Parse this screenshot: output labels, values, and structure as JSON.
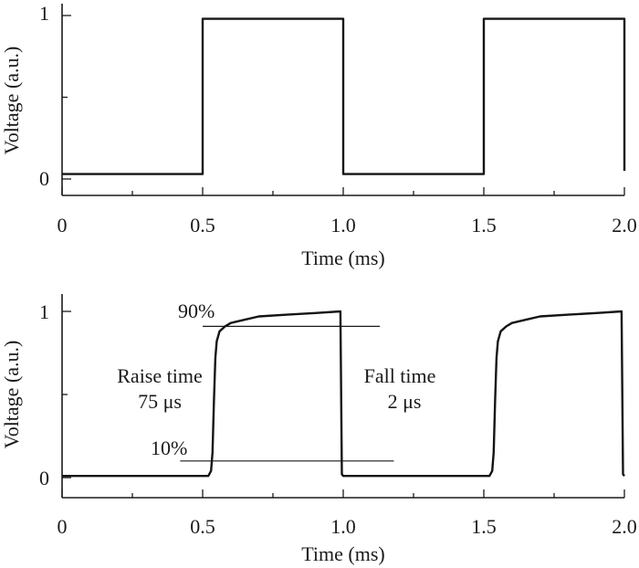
{
  "chart_data": [
    {
      "type": "line",
      "panel": "top",
      "title": "",
      "xlabel": "Time (ms)",
      "ylabel": "Voltage (a.u.)",
      "xlim": [
        0,
        2.0
      ],
      "ylim": [
        -0.1,
        1.05
      ],
      "xticks": [
        0,
        0.5,
        1.0,
        1.5,
        2.0
      ],
      "xtick_labels": [
        "0",
        "0.5",
        "1.0",
        "1.5",
        "2.0"
      ],
      "yticks": [
        0,
        1
      ],
      "ytick_labels": [
        "0",
        "1"
      ],
      "grid": false,
      "series": [
        {
          "name": "Voltage",
          "x": [
            0,
            0.5,
            0.5,
            1.0,
            1.0,
            1.5,
            1.5,
            2.0,
            2.0
          ],
          "y": [
            0.03,
            0.03,
            0.98,
            0.98,
            0.03,
            0.03,
            0.98,
            0.98,
            0.05
          ]
        }
      ],
      "annotations": []
    },
    {
      "type": "line",
      "panel": "bottom",
      "title": "",
      "xlabel": "Time (ms)",
      "ylabel": "Voltage (a.u.)",
      "xlim": [
        0,
        2.0
      ],
      "ylim": [
        -0.12,
        1.1
      ],
      "xticks": [
        0,
        0.5,
        1.0,
        1.5,
        2.0
      ],
      "xtick_labels": [
        "0",
        "0.5",
        "1.0",
        "1.5",
        "2.0"
      ],
      "yticks": [
        0,
        1
      ],
      "ytick_labels": [
        "0",
        "1"
      ],
      "grid": false,
      "series": [
        {
          "name": "Voltage",
          "x": [
            0,
            0.52,
            0.53,
            0.535,
            0.54,
            0.545,
            0.55,
            0.56,
            0.58,
            0.6,
            0.65,
            0.7,
            0.8,
            0.9,
            0.99,
            0.995,
            1.0,
            1.52,
            1.53,
            1.535,
            1.54,
            1.545,
            1.55,
            1.56,
            1.58,
            1.6,
            1.65,
            1.7,
            1.8,
            1.9,
            1.99,
            1.995,
            2.0
          ],
          "y": [
            0.01,
            0.01,
            0.04,
            0.15,
            0.45,
            0.72,
            0.82,
            0.88,
            0.91,
            0.93,
            0.95,
            0.97,
            0.98,
            0.99,
            1.0,
            0.02,
            0.01,
            0.01,
            0.04,
            0.15,
            0.45,
            0.72,
            0.82,
            0.88,
            0.91,
            0.93,
            0.95,
            0.97,
            0.98,
            0.99,
            1.0,
            0.02,
            0.01
          ]
        }
      ],
      "ref_lines": [
        {
          "label": "90%",
          "y": 0.91,
          "x_start": 0.5,
          "x_end": 1.13
        },
        {
          "label": "10%",
          "y": 0.1,
          "x_start": 0.42,
          "x_end": 1.18
        }
      ],
      "annotations": [
        {
          "line1": "Raise time",
          "line2": "75 μs"
        },
        {
          "line1": "Fall time",
          "line2": "2 μs"
        }
      ]
    }
  ]
}
